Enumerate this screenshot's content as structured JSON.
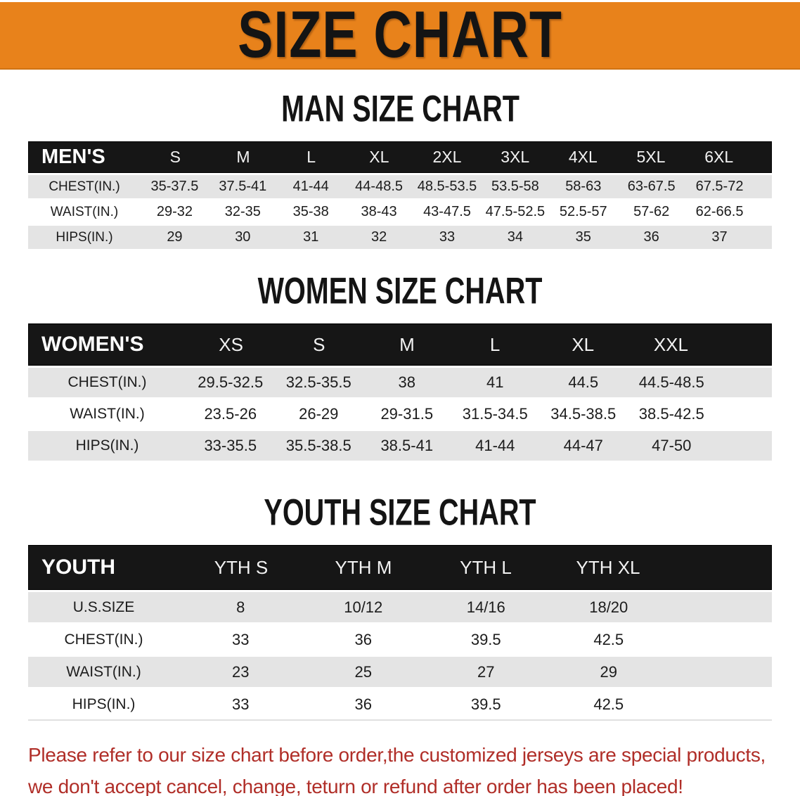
{
  "banner": {
    "title": "SIZE CHART",
    "bg_color": "#E8821B",
    "text_color": "#141414"
  },
  "sections": [
    {
      "heading": "MAN SIZE CHART",
      "header_label": "MEN'S",
      "columns": [
        "S",
        "M",
        "L",
        "XL",
        "2XL",
        "3XL",
        "4XL",
        "5XL",
        "6XL"
      ],
      "rows": [
        {
          "label": "CHEST(IN.)",
          "values": [
            "35-37.5",
            "37.5-41",
            "41-44",
            "44-48.5",
            "48.5-53.5",
            "53.5-58",
            "58-63",
            "63-67.5",
            "67.5-72"
          ]
        },
        {
          "label": "WAIST(IN.)",
          "values": [
            "29-32",
            "32-35",
            "35-38",
            "38-43",
            "43-47.5",
            "47.5-52.5",
            "52.5-57",
            "57-62",
            "62-66.5"
          ]
        },
        {
          "label": "HIPS(IN.)",
          "values": [
            "29",
            "30",
            "31",
            "32",
            "33",
            "34",
            "35",
            "36",
            "37"
          ]
        }
      ]
    },
    {
      "heading": "WOMEN SIZE CHART",
      "header_label": "WOMEN'S",
      "columns": [
        "XS",
        "S",
        "M",
        "L",
        "XL",
        "XXL"
      ],
      "rows": [
        {
          "label": "CHEST(IN.)",
          "values": [
            "29.5-32.5",
            "32.5-35.5",
            "38",
            "41",
            "44.5",
            "44.5-48.5"
          ]
        },
        {
          "label": "WAIST(IN.)",
          "values": [
            "23.5-26",
            "26-29",
            "29-31.5",
            "31.5-34.5",
            "34.5-38.5",
            "38.5-42.5"
          ]
        },
        {
          "label": "HIPS(IN.)",
          "values": [
            "33-35.5",
            "35.5-38.5",
            "38.5-41",
            "41-44",
            "44-47",
            "47-50"
          ]
        }
      ]
    },
    {
      "heading": "YOUTH SIZE CHART",
      "header_label": "YOUTH",
      "columns": [
        "YTH S",
        "YTH M",
        "YTH L",
        "YTH XL"
      ],
      "rows": [
        {
          "label": "U.S.SIZE",
          "values": [
            "8",
            "10/12",
            "14/16",
            "18/20"
          ]
        },
        {
          "label": "CHEST(IN.)",
          "values": [
            "33",
            "36",
            "39.5",
            "42.5"
          ]
        },
        {
          "label": "WAIST(IN.)",
          "values": [
            "23",
            "25",
            "27",
            "29"
          ]
        },
        {
          "label": "HIPS(IN.)",
          "values": [
            "33",
            "36",
            "39.5",
            "42.5"
          ]
        }
      ]
    }
  ],
  "footer": {
    "line1": "Please refer to our size chart before order,the customized jerseys are special products,",
    "line2": "we don't accept cancel, change, teturn or refund after order has been placed!",
    "color": "#b02e28"
  }
}
